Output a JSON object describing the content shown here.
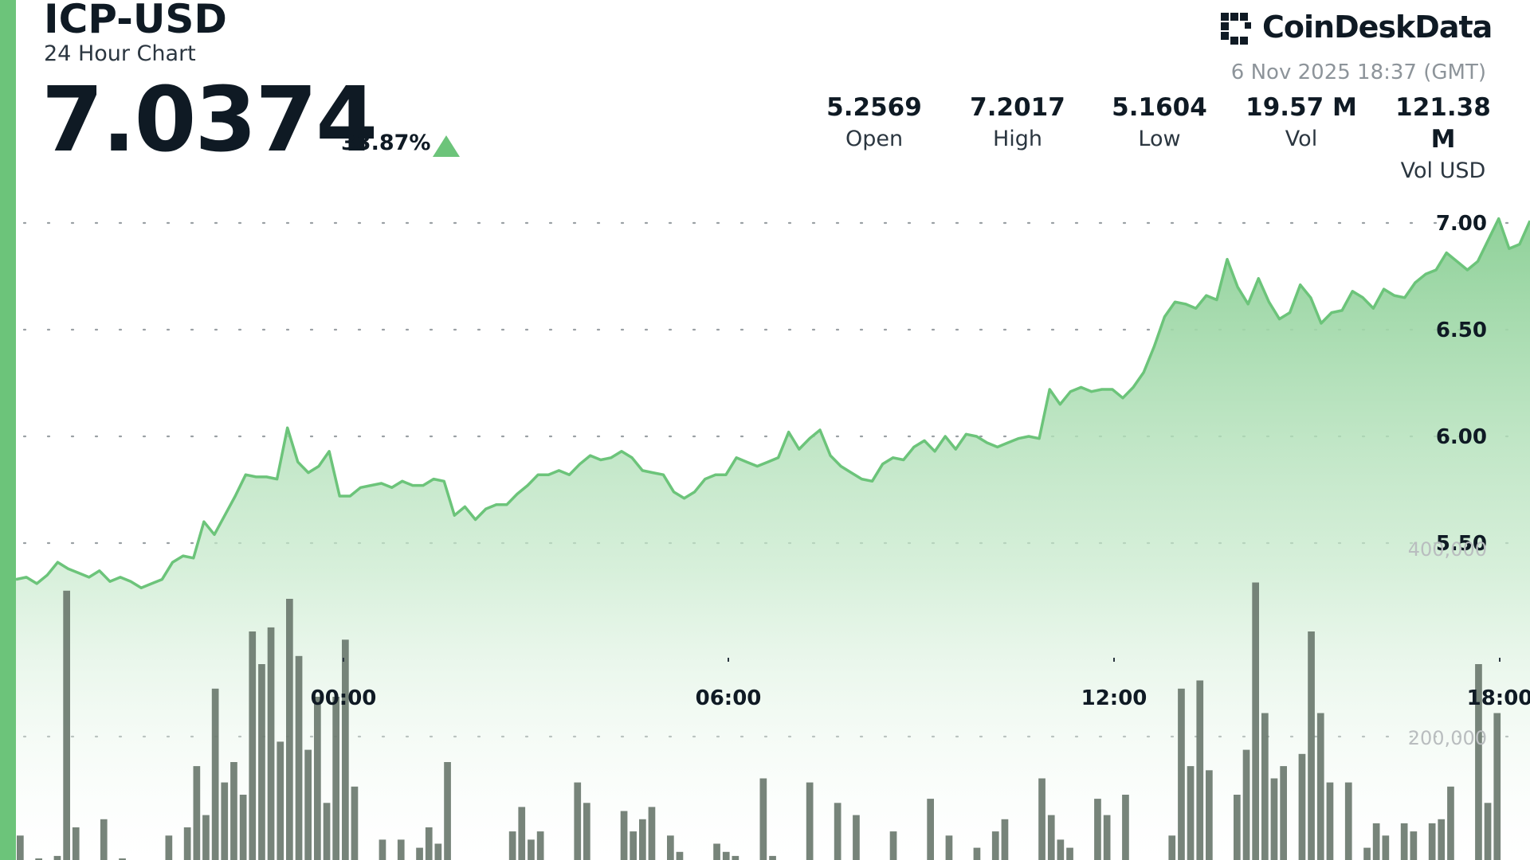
{
  "header": {
    "symbol": "ICP-USD",
    "subtitle": "24 Hour Chart",
    "price": "7.0374",
    "change_pct": "33.87%",
    "change_direction": "up"
  },
  "brand": {
    "name": "CoinDeskData",
    "timestamp": "6 Nov 2025 18:37 (GMT)"
  },
  "stats": [
    {
      "value": "5.2569",
      "label": "Open"
    },
    {
      "value": "7.2017",
      "label": "High"
    },
    {
      "value": "5.1604",
      "label": "Low"
    },
    {
      "value": "19.57 M",
      "label": "Vol"
    },
    {
      "value": "121.38 M",
      "label": "Vol USD"
    }
  ],
  "colors": {
    "accent": "#6cc47a",
    "line": "#6cc47a",
    "area_top": "#8fd199",
    "volume_bar": "#6b7a6f"
  },
  "chart_data": {
    "type": "line",
    "title": "",
    "xlabel": "",
    "ylabel": "",
    "x_ticks": [
      "00:00",
      "06:00",
      "12:00",
      "18:00"
    ],
    "y_ticks": [
      "5.50",
      "6.00",
      "6.50",
      "7.00"
    ],
    "ylim": [
      4.7,
      7.2
    ],
    "grid": true,
    "series": [
      {
        "values": [
          5.33,
          5.34,
          5.31,
          5.35,
          5.41,
          5.38,
          5.36,
          5.34,
          5.37,
          5.32,
          5.34,
          5.32,
          5.29,
          5.31,
          5.33,
          5.41,
          5.44,
          5.43,
          5.6,
          5.54,
          5.63,
          5.72,
          5.82,
          5.81,
          5.81,
          5.8,
          6.04,
          5.88,
          5.83,
          5.86,
          5.93,
          5.72,
          5.72,
          5.76,
          5.77,
          5.78,
          5.76,
          5.79,
          5.77,
          5.77,
          5.8,
          5.79,
          5.63,
          5.67,
          5.61,
          5.66,
          5.68,
          5.68,
          5.73,
          5.77,
          5.82,
          5.82,
          5.84,
          5.82,
          5.87,
          5.91,
          5.89,
          5.9,
          5.93,
          5.9,
          5.84,
          5.83,
          5.82,
          5.74,
          5.71,
          5.74,
          5.8,
          5.82,
          5.82,
          5.9,
          5.88,
          5.86,
          5.88,
          5.9,
          6.02,
          5.94,
          5.99,
          6.03,
          5.91,
          5.86,
          5.83,
          5.8,
          5.79,
          5.87,
          5.9,
          5.89,
          5.95,
          5.98,
          5.93,
          6.0,
          5.94,
          6.01,
          6.0,
          5.97,
          5.95,
          5.97,
          5.99,
          6.0,
          5.99,
          6.22,
          6.15,
          6.21,
          6.23,
          6.21,
          6.22,
          6.22,
          6.18,
          6.23,
          6.3,
          6.42,
          6.56,
          6.63,
          6.62,
          6.6,
          6.66,
          6.64,
          6.83,
          6.7,
          6.62,
          6.74,
          6.63,
          6.55,
          6.58,
          6.71,
          6.65,
          6.53,
          6.58,
          6.59,
          6.68,
          6.65,
          6.6,
          6.69,
          6.66,
          6.65,
          6.72,
          6.76,
          6.78,
          6.86,
          6.82,
          6.78,
          6.82,
          6.92,
          7.02,
          6.88,
          6.9,
          7.01
        ]
      }
    ],
    "volume": {
      "y_ticks": [
        "200,000",
        "400,000"
      ],
      "values": [
        30000,
        0,
        2000,
        0,
        5000,
        330000,
        40000,
        0,
        0,
        50000,
        0,
        2000,
        0,
        0,
        0,
        0,
        30000,
        0,
        40000,
        115000,
        55000,
        210000,
        95000,
        120000,
        80000,
        280000,
        240000,
        285000,
        145000,
        320000,
        250000,
        135000,
        200000,
        70000,
        200000,
        270000,
        90000,
        0,
        0,
        25000,
        0,
        25000,
        0,
        15000,
        40000,
        20000,
        120000,
        0,
        0,
        0,
        0,
        0,
        0,
        35000,
        65000,
        25000,
        35000,
        0,
        0,
        0,
        95000,
        70000,
        0,
        0,
        0,
        60000,
        35000,
        50000,
        65000,
        0,
        30000,
        10000,
        0,
        0,
        0,
        20000,
        10000,
        5000,
        0,
        0,
        100000,
        5000,
        0,
        0,
        0,
        95000,
        0,
        0,
        70000,
        0,
        55000,
        0,
        0,
        0,
        35000,
        0,
        0,
        0,
        75000,
        0,
        30000,
        0,
        0,
        15000,
        0,
        35000,
        50000,
        0,
        0,
        0,
        100000,
        55000,
        25000,
        15000,
        0,
        0,
        75000,
        55000,
        0,
        80000,
        0,
        0,
        0,
        0,
        30000,
        210000,
        115000,
        220000,
        110000,
        0,
        0,
        80000,
        135000,
        340000,
        180000,
        100000,
        115000,
        0,
        130000,
        280000,
        180000,
        95000,
        0,
        95000,
        0,
        15000,
        45000,
        30000,
        0,
        45000,
        35000,
        0,
        45000,
        50000,
        90000,
        0,
        0,
        240000,
        70000,
        180000,
        0,
        0,
        0
      ]
    }
  }
}
